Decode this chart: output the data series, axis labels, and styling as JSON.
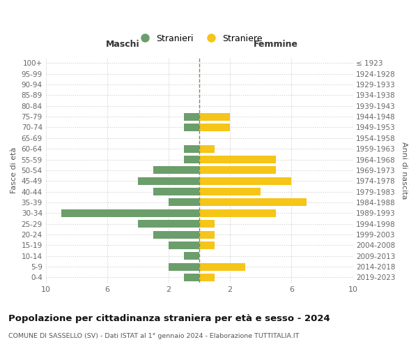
{
  "age_groups": [
    "0-4",
    "5-9",
    "10-14",
    "15-19",
    "20-24",
    "25-29",
    "30-34",
    "35-39",
    "40-44",
    "45-49",
    "50-54",
    "55-59",
    "60-64",
    "65-69",
    "70-74",
    "75-79",
    "80-84",
    "85-89",
    "90-94",
    "95-99",
    "100+"
  ],
  "birth_years": [
    "2019-2023",
    "2014-2018",
    "2009-2013",
    "2004-2008",
    "1999-2003",
    "1994-1998",
    "1989-1993",
    "1984-1988",
    "1979-1983",
    "1974-1978",
    "1969-1973",
    "1964-1968",
    "1959-1963",
    "1954-1958",
    "1949-1953",
    "1944-1948",
    "1939-1943",
    "1934-1938",
    "1929-1933",
    "1924-1928",
    "≤ 1923"
  ],
  "males": [
    1,
    2,
    1,
    2,
    3,
    4,
    9,
    2,
    3,
    4,
    3,
    1,
    1,
    0,
    1,
    1,
    0,
    0,
    0,
    0,
    0
  ],
  "females": [
    1,
    3,
    0,
    1,
    1,
    1,
    5,
    7,
    4,
    6,
    5,
    5,
    1,
    0,
    2,
    2,
    0,
    0,
    0,
    0,
    0
  ],
  "male_color": "#6b9e6b",
  "female_color": "#f5c518",
  "grid_color": "#cccccc",
  "title": "Popolazione per cittadinanza straniera per età e sesso - 2024",
  "subtitle": "COMUNE DI SASSELLO (SV) - Dati ISTAT al 1° gennaio 2024 - Elaborazione TUTTITALIA.IT",
  "xlabel_left": "Maschi",
  "xlabel_right": "Femmine",
  "ylabel_left": "Fasce di età",
  "ylabel_right": "Anni di nascita",
  "legend_stranieri": "Stranieri",
  "legend_straniere": "Straniere",
  "xlim": 10,
  "xtick_positions": [
    -10,
    -6,
    -2,
    2,
    6,
    10
  ],
  "xtick_labels": [
    "10",
    "6",
    "2",
    "2",
    "6",
    "10"
  ]
}
